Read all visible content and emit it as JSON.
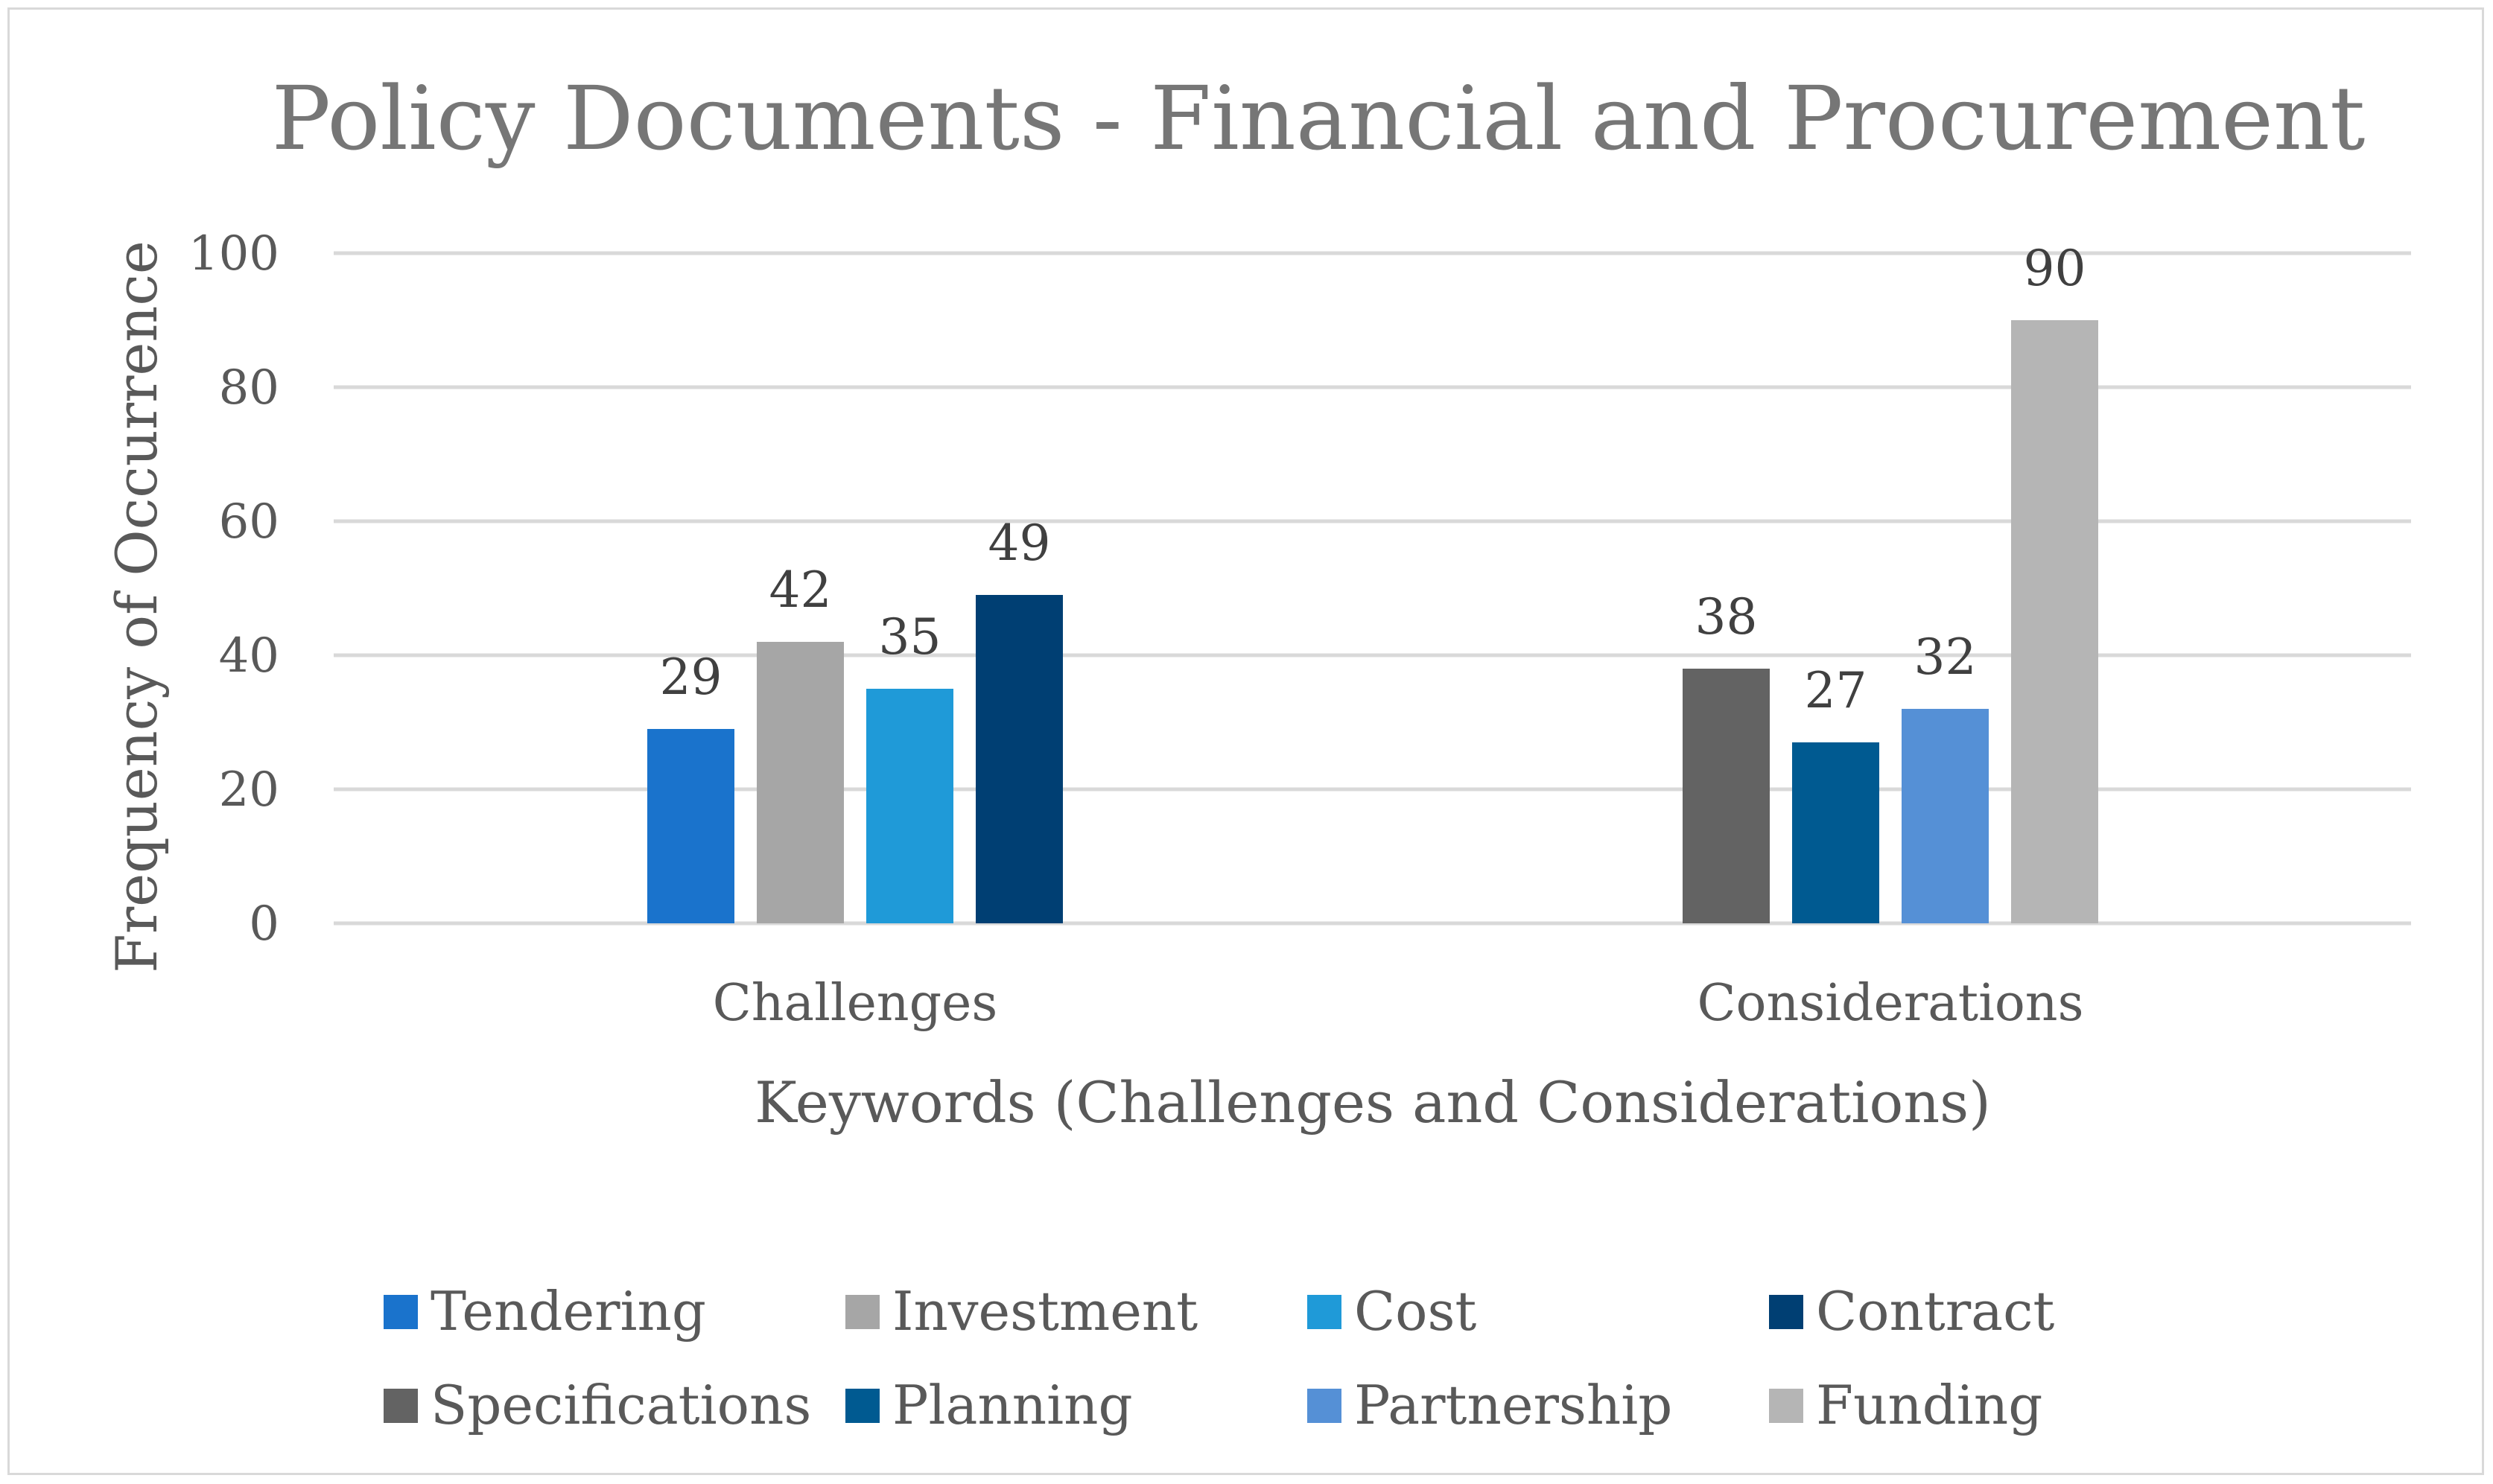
{
  "chart_data": {
    "type": "bar",
    "title": "Policy Documents - Financial and Procurement",
    "xlabel": "Keywords (Challenges and Considerations)",
    "ylabel": "Frequency of Occurrence",
    "ylim": [
      0,
      100
    ],
    "yticks": [
      "0",
      "20",
      "40",
      "60",
      "80",
      "100"
    ],
    "ytick_values": [
      0,
      20,
      40,
      60,
      80,
      100
    ],
    "grid": true,
    "legend_position": "bottom",
    "categories": [
      "Challenges",
      "Considerations"
    ],
    "series": [
      {
        "name": "Tendering",
        "color": "#1a73cc",
        "values": [
          29,
          null
        ]
      },
      {
        "name": "Investment",
        "color": "#a6a6a6",
        "values": [
          42,
          null
        ]
      },
      {
        "name": "Cost",
        "color": "#1f9ad8",
        "values": [
          35,
          null
        ]
      },
      {
        "name": "Contract",
        "color": "#003f73",
        "values": [
          49,
          null
        ]
      },
      {
        "name": "Specifications",
        "color": "#636363",
        "values": [
          null,
          38
        ]
      },
      {
        "name": "Planning",
        "color": "#005a91",
        "values": [
          null,
          27
        ]
      },
      {
        "name": "Partnership",
        "color": "#5590d6",
        "values": [
          null,
          32
        ]
      },
      {
        "name": "Funding",
        "color": "#b5b5b5",
        "values": [
          null,
          90
        ]
      }
    ]
  }
}
